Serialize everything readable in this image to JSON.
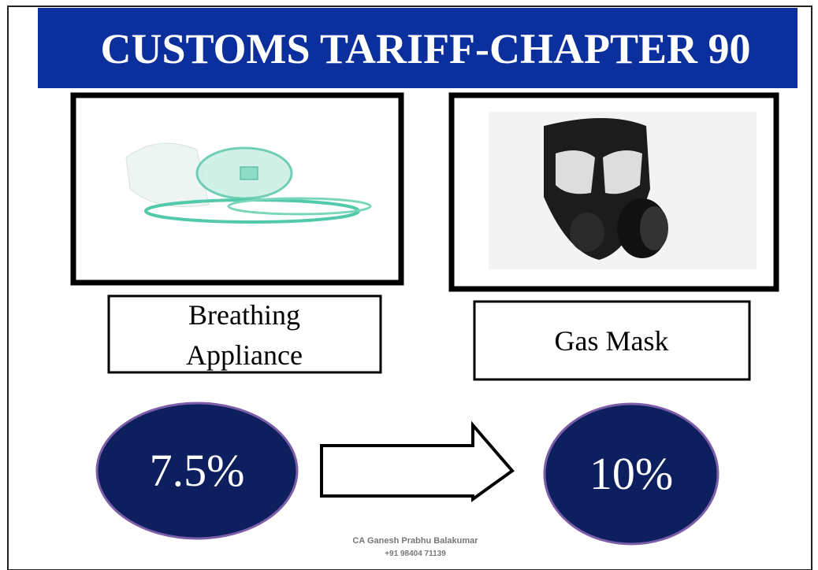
{
  "header": {
    "title": "CUSTOMS TARIFF-CHAPTER 90"
  },
  "items": [
    {
      "label": [
        "Breathing",
        "Appliance"
      ],
      "rate": "7.5%"
    },
    {
      "label": [
        "Gas Mask"
      ],
      "rate": "10%"
    }
  ],
  "footer": {
    "name": "CA Ganesh Prabhu Balakumar",
    "phone": "+91 98404 71139"
  }
}
